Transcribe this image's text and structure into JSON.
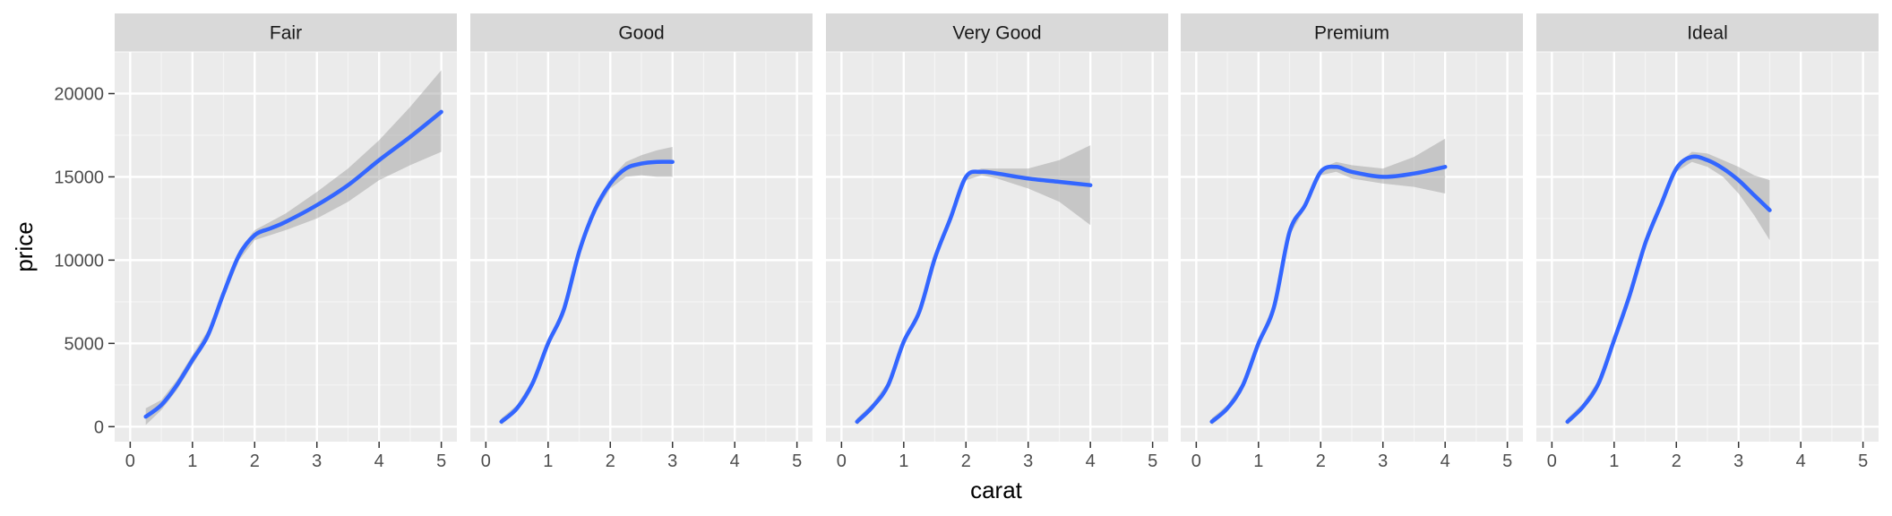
{
  "chart_data": {
    "type": "line",
    "facet_var": "cut",
    "xlabel": "carat",
    "ylabel": "price",
    "xlim": [
      0,
      5
    ],
    "ylim": [
      -900,
      22500
    ],
    "x_ticks": [
      0,
      1,
      2,
      3,
      4,
      5
    ],
    "y_ticks": [
      0,
      5000,
      10000,
      15000,
      20000
    ],
    "grid": true,
    "legend": "none",
    "colors": {
      "line": "#3366FF",
      "ribbon": "#999999",
      "panel_bg": "#EBEBEB",
      "strip_bg": "#D9D9D9",
      "grid_major": "#FFFFFF",
      "text": "#4D4D4D"
    },
    "panels": [
      {
        "label": "Fair",
        "x": [
          0.25,
          0.5,
          0.75,
          1.0,
          1.25,
          1.5,
          1.75,
          2.0,
          2.25,
          2.5,
          3.0,
          3.5,
          4.0,
          4.5,
          5.0
        ],
        "y": [
          600,
          1300,
          2500,
          4000,
          5500,
          8000,
          10300,
          11500,
          11900,
          12300,
          13300,
          14500,
          16000,
          17400,
          18900
        ],
        "lower": [
          100,
          1000,
          2200,
          3700,
          5200,
          7700,
          10000,
          11200,
          11500,
          11800,
          12500,
          13500,
          14800,
          15700,
          16500
        ],
        "upper": [
          1100,
          1600,
          2800,
          4300,
          5800,
          8300,
          10600,
          11800,
          12300,
          12800,
          14100,
          15500,
          17200,
          19200,
          21400
        ]
      },
      {
        "label": "Good",
        "x": [
          0.25,
          0.5,
          0.75,
          1.0,
          1.25,
          1.5,
          1.75,
          2.0,
          2.25,
          2.5,
          2.75,
          3.0
        ],
        "y": [
          300,
          1100,
          2600,
          5000,
          7000,
          10500,
          13000,
          14600,
          15500,
          15800,
          15900,
          15900
        ],
        "lower": [
          100,
          900,
          2400,
          4800,
          6800,
          10300,
          12800,
          14300,
          15000,
          15100,
          15000,
          15000
        ],
        "upper": [
          500,
          1300,
          2800,
          5200,
          7200,
          10700,
          13200,
          14900,
          15900,
          16300,
          16600,
          16800
        ]
      },
      {
        "label": "Very Good",
        "x": [
          0.25,
          0.5,
          0.75,
          1.0,
          1.25,
          1.5,
          1.75,
          2.0,
          2.25,
          2.5,
          3.0,
          3.5,
          4.0
        ],
        "y": [
          300,
          1200,
          2500,
          5100,
          6900,
          10100,
          12500,
          15000,
          15300,
          15200,
          14900,
          14700,
          14500
        ],
        "lower": [
          100,
          1000,
          2300,
          4900,
          6700,
          9900,
          12300,
          14800,
          15100,
          14900,
          14300,
          13500,
          12100
        ],
        "upper": [
          500,
          1400,
          2700,
          5300,
          7100,
          10300,
          12700,
          15200,
          15500,
          15500,
          15500,
          16000,
          16900
        ]
      },
      {
        "label": "Premium",
        "x": [
          0.25,
          0.5,
          0.75,
          1.0,
          1.25,
          1.5,
          1.75,
          2.0,
          2.25,
          2.5,
          3.0,
          3.5,
          4.0
        ],
        "y": [
          300,
          1100,
          2500,
          5000,
          7200,
          11700,
          13300,
          15300,
          15600,
          15300,
          15000,
          15200,
          15600
        ],
        "lower": [
          100,
          900,
          2300,
          4800,
          7000,
          11500,
          13100,
          15100,
          15300,
          14900,
          14600,
          14400,
          14000
        ],
        "upper": [
          500,
          1300,
          2700,
          5200,
          7400,
          11900,
          13500,
          15500,
          15900,
          15700,
          15500,
          16200,
          17300
        ]
      },
      {
        "label": "Ideal",
        "x": [
          0.25,
          0.5,
          0.75,
          1.0,
          1.25,
          1.5,
          1.75,
          2.0,
          2.25,
          2.5,
          2.75,
          3.0,
          3.25,
          3.5
        ],
        "y": [
          300,
          1200,
          2600,
          5200,
          7900,
          11000,
          13300,
          15500,
          16200,
          16000,
          15500,
          14800,
          13900,
          13000
        ],
        "lower": [
          100,
          1000,
          2400,
          5000,
          7700,
          10800,
          13100,
          15300,
          15900,
          15600,
          15000,
          14000,
          12700,
          11200
        ],
        "upper": [
          500,
          1400,
          2800,
          5400,
          8100,
          11200,
          13500,
          15700,
          16500,
          16400,
          16000,
          15600,
          15100,
          14800
        ]
      }
    ]
  }
}
